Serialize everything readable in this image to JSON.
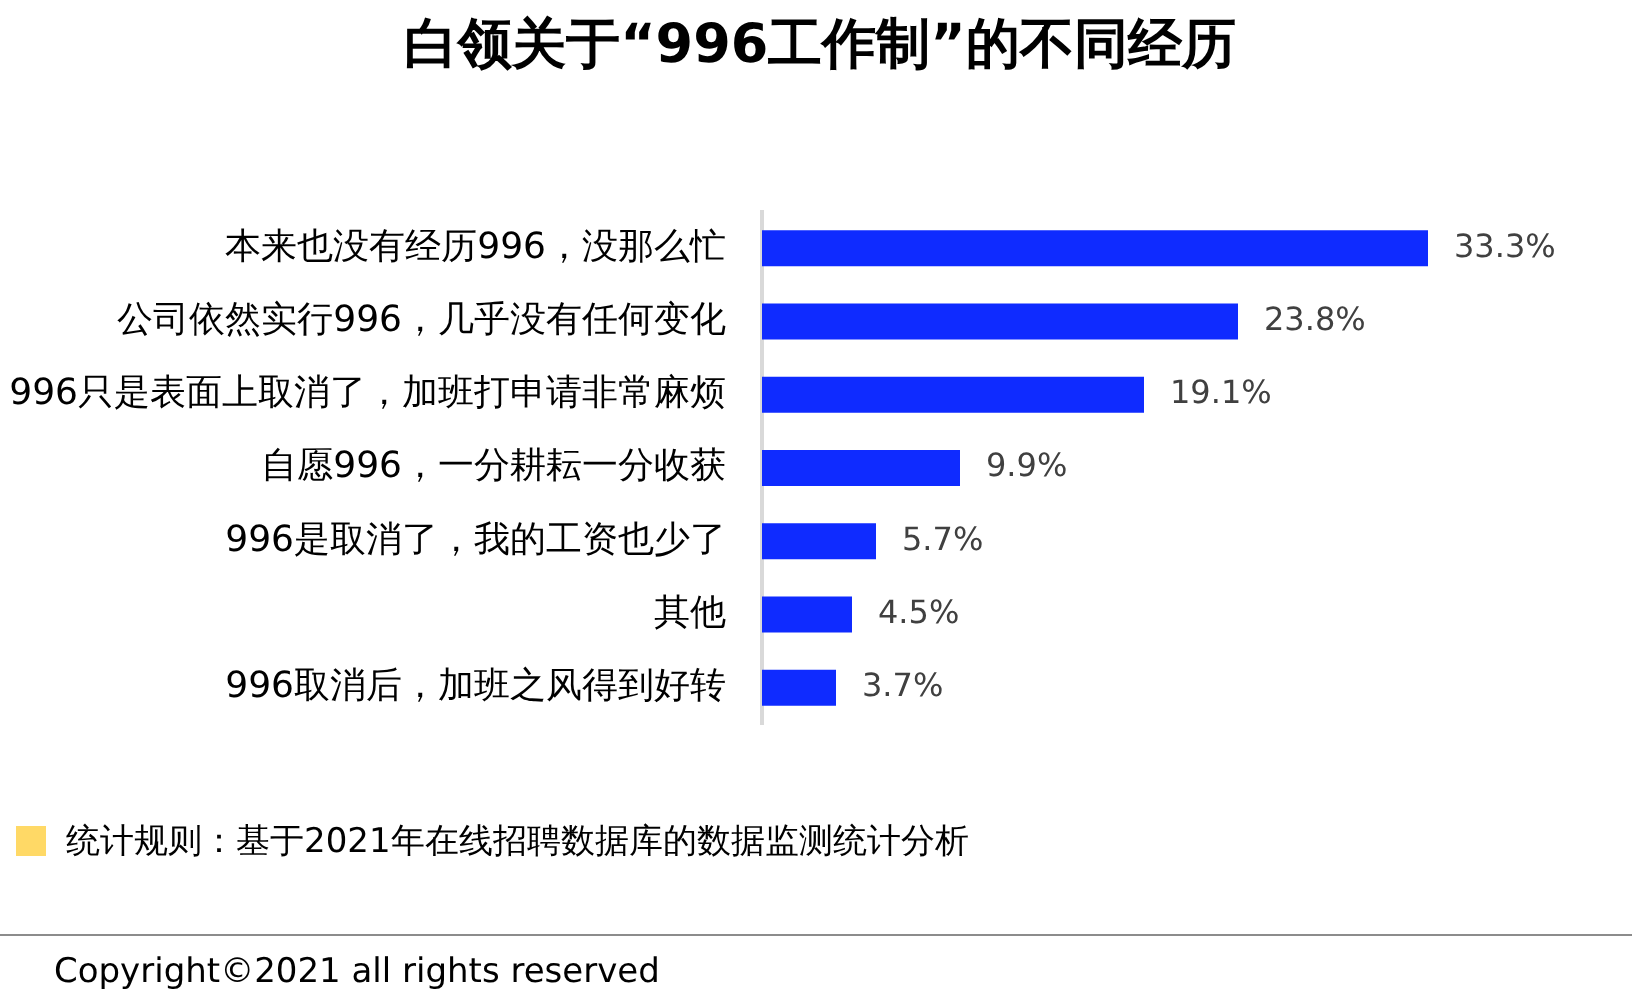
{
  "chart_data": {
    "type": "bar",
    "orientation": "horizontal",
    "title": "白领关于“996工作制”的不同经历",
    "categories": [
      "本来也没有经历996，没那么忙",
      "公司依然实行996，几乎没有任何变化",
      "996只是表面上取消了，加班打申请非常麻烦",
      "自愿996，一分耕耘一分收获",
      "996是取消了，我的工资也少了",
      "其他",
      "996取消后，加班之风得到好转"
    ],
    "values": [
      33.3,
      23.8,
      19.1,
      9.9,
      5.7,
      4.5,
      3.7
    ],
    "color": "#0f2bff",
    "value_labels": [
      "33.3%",
      "23.8%",
      "19.1%",
      "9.9%",
      "5.7%",
      "4.5%",
      "3.7%"
    ],
    "tick_labels": "y",
    "annotations": [
      "统计规则：基于2021年在线招聘数据库的数据监测统计分析",
      "Copyright©2021 all rights reserved"
    ]
  }
}
